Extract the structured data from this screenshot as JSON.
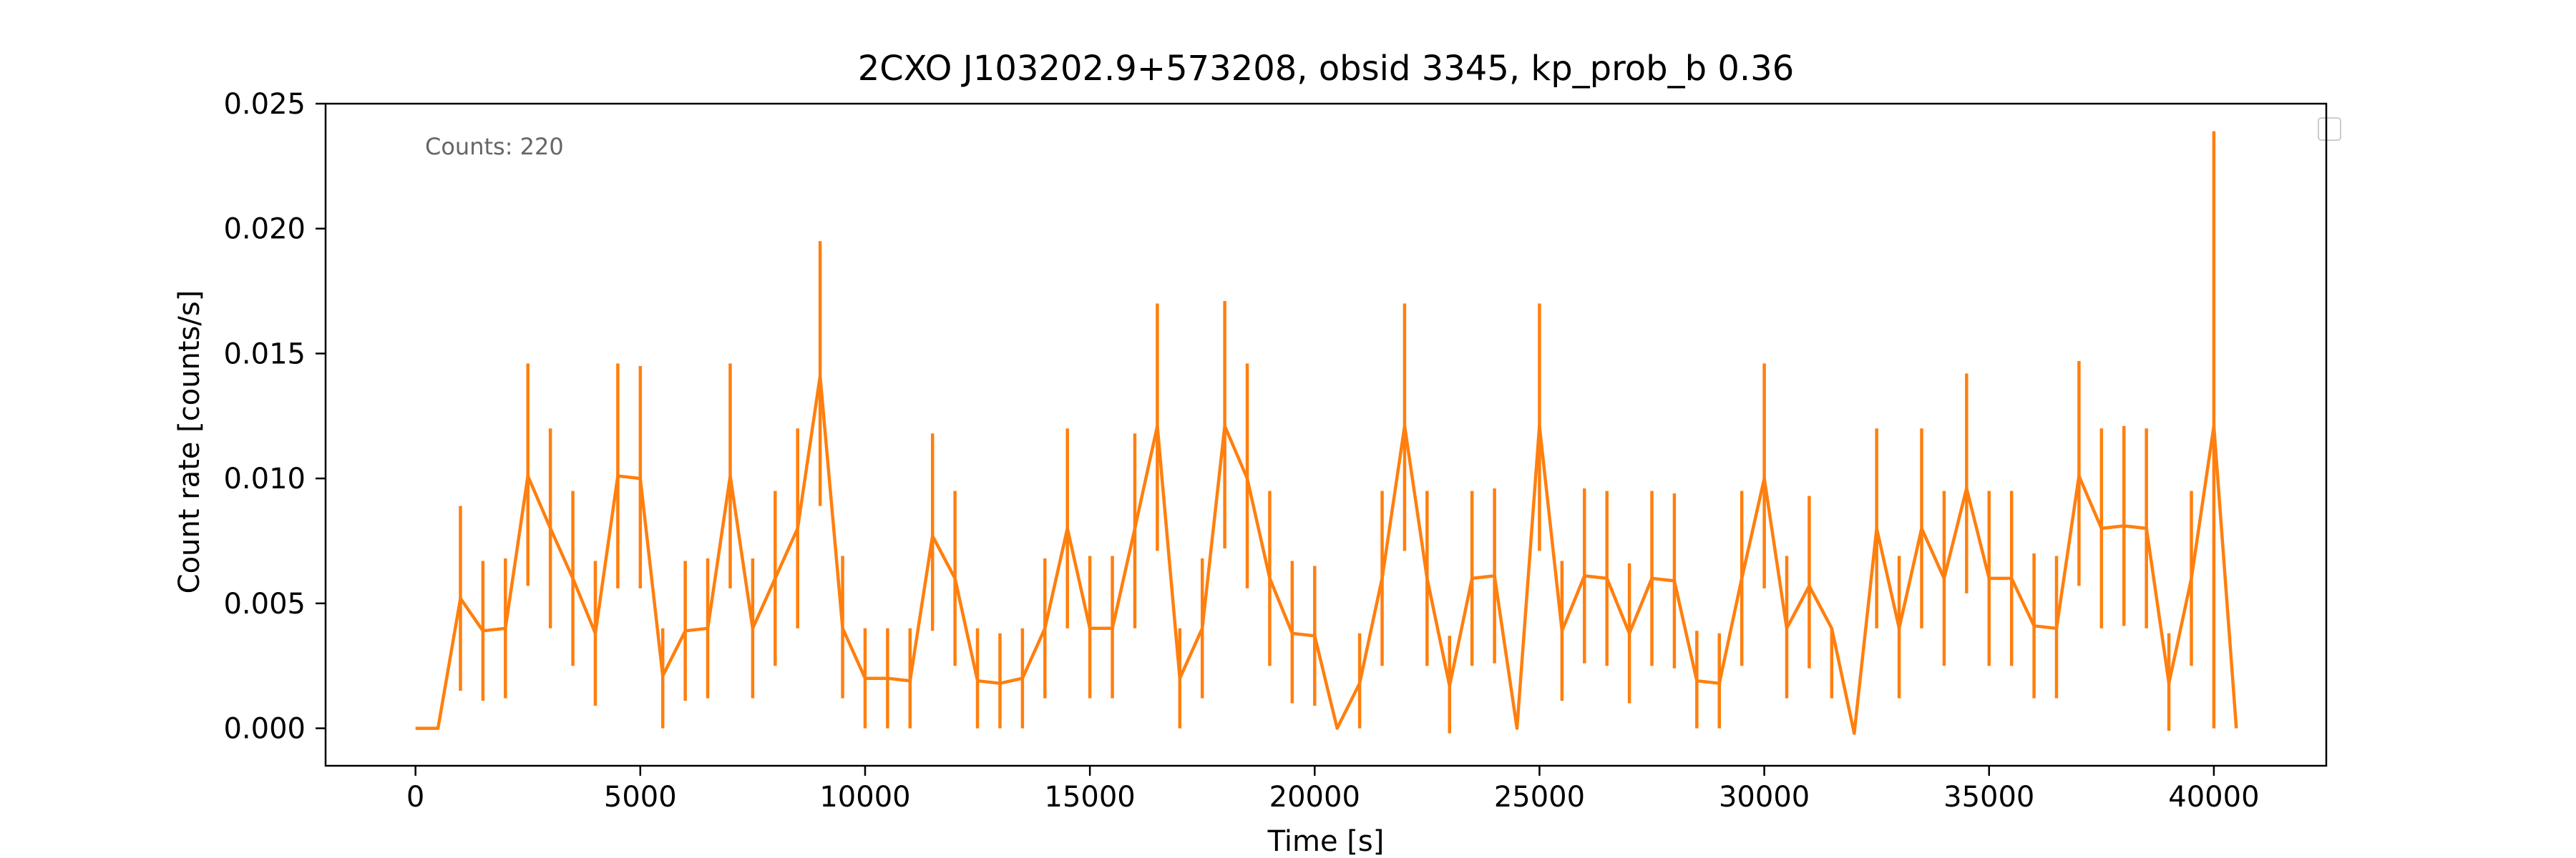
{
  "chart_data": {
    "type": "line",
    "title": "2CXO J103202.9+573208, obsid 3345, kp_prob_b 0.36",
    "xlabel": "Time [s]",
    "ylabel": "Count rate [counts/s]",
    "annotation": "Counts: 220",
    "xlim": [
      -2000,
      42500
    ],
    "ylim": [
      -0.0015,
      0.025
    ],
    "xticks": [
      0,
      5000,
      10000,
      15000,
      20000,
      25000,
      30000,
      35000,
      40000
    ],
    "yticks": [
      0.0,
      0.005,
      0.01,
      0.015,
      0.02,
      0.025
    ],
    "ytick_format": 3,
    "grid": false,
    "legend": "top-right (empty)",
    "series": [
      {
        "color": "#ff7f0e",
        "x": [
          0,
          500,
          1000,
          1500,
          2000,
          2500,
          3000,
          3500,
          4000,
          4500,
          5000,
          5500,
          6000,
          6500,
          7000,
          7500,
          8000,
          8500,
          9000,
          9500,
          10000,
          10500,
          11000,
          11500,
          12000,
          12500,
          13000,
          13500,
          14000,
          14500,
          15000,
          15500,
          16000,
          16500,
          17000,
          17500,
          18000,
          18500,
          19000,
          19500,
          20000,
          20500,
          21000,
          21500,
          22000,
          22500,
          23000,
          23500,
          24000,
          24500,
          25000,
          25500,
          26000,
          26500,
          27000,
          27500,
          28000,
          28500,
          29000,
          29500,
          30000,
          30500,
          31000,
          31500,
          32000,
          32500,
          33000,
          33500,
          34000,
          34500,
          35000,
          35500,
          36000,
          36500,
          37000,
          37500,
          38000,
          38500,
          39000,
          39500,
          40000,
          40500
        ],
        "y": [
          0.0,
          0.0,
          0.0052,
          0.0039,
          0.004,
          0.0101,
          0.008,
          0.006,
          0.0038,
          0.0101,
          0.01,
          0.0021,
          0.0039,
          0.004,
          0.0101,
          0.004,
          0.006,
          0.008,
          0.0141,
          0.004,
          0.002,
          0.002,
          0.0019,
          0.0077,
          0.006,
          0.0019,
          0.0018,
          0.002,
          0.004,
          0.008,
          0.004,
          0.004,
          0.008,
          0.0121,
          0.002,
          0.004,
          0.0121,
          0.01,
          0.006,
          0.0038,
          0.0037,
          0.0,
          0.0018,
          0.006,
          0.0121,
          0.006,
          0.0017,
          0.006,
          0.0061,
          0.0,
          0.0121,
          0.0039,
          0.0061,
          0.006,
          0.0038,
          0.006,
          0.0059,
          0.0019,
          0.0018,
          0.006,
          0.01,
          0.004,
          0.0057,
          0.004,
          -0.0002,
          0.008,
          0.004,
          0.008,
          0.006,
          0.0096,
          0.006,
          0.006,
          0.0041,
          0.004,
          0.0101,
          0.008,
          0.0081,
          0.008,
          0.0018,
          0.006,
          0.0121,
          0.0
        ],
        "yerr_low": [
          0.0,
          0.0,
          0.0037,
          0.0028,
          0.0028,
          0.0044,
          0.004,
          0.0035,
          0.0029,
          0.0045,
          0.0044,
          0.0021,
          0.0028,
          0.0028,
          0.0045,
          0.0028,
          0.0035,
          0.004,
          0.0052,
          0.0028,
          0.002,
          0.002,
          0.0019,
          0.0038,
          0.0035,
          0.0019,
          0.0018,
          0.002,
          0.0028,
          0.004,
          0.0028,
          0.0028,
          0.004,
          0.005,
          0.002,
          0.0028,
          0.0049,
          0.0044,
          0.0035,
          0.0028,
          0.0028,
          0.0,
          0.0018,
          0.0035,
          0.005,
          0.0035,
          0.0019,
          0.0035,
          0.0035,
          0.0,
          0.005,
          0.0028,
          0.0035,
          0.0035,
          0.0028,
          0.0035,
          0.0035,
          0.0019,
          0.0018,
          0.0035,
          0.0044,
          0.0028,
          0.0033,
          0.0028,
          0.0,
          0.004,
          0.0028,
          0.004,
          0.0035,
          0.0042,
          0.0035,
          0.0035,
          0.0029,
          0.0028,
          0.0044,
          0.004,
          0.004,
          0.004,
          0.0019,
          0.0035,
          0.0121,
          0.0
        ],
        "yerr_high": [
          0.0,
          0.0,
          0.0037,
          0.0028,
          0.0028,
          0.0045,
          0.004,
          0.0035,
          0.0029,
          0.0045,
          0.0045,
          0.0019,
          0.0028,
          0.0028,
          0.0045,
          0.0028,
          0.0035,
          0.004,
          0.0054,
          0.0029,
          0.002,
          0.002,
          0.0021,
          0.0041,
          0.0035,
          0.0021,
          0.002,
          0.002,
          0.0028,
          0.004,
          0.0029,
          0.0029,
          0.0038,
          0.0049,
          0.002,
          0.0028,
          0.005,
          0.0046,
          0.0035,
          0.0029,
          0.0028,
          0.0,
          0.002,
          0.0035,
          0.0049,
          0.0035,
          0.002,
          0.0035,
          0.0035,
          0.0,
          0.0049,
          0.0028,
          0.0035,
          0.0035,
          0.0028,
          0.0035,
          0.0035,
          0.002,
          0.002,
          0.0035,
          0.0046,
          0.0029,
          0.0036,
          0.0,
          0.0,
          0.004,
          0.0029,
          0.004,
          0.0035,
          0.0046,
          0.0035,
          0.0035,
          0.0029,
          0.0029,
          0.0046,
          0.004,
          0.004,
          0.004,
          0.002,
          0.0035,
          0.0118,
          0.0
        ]
      }
    ]
  }
}
